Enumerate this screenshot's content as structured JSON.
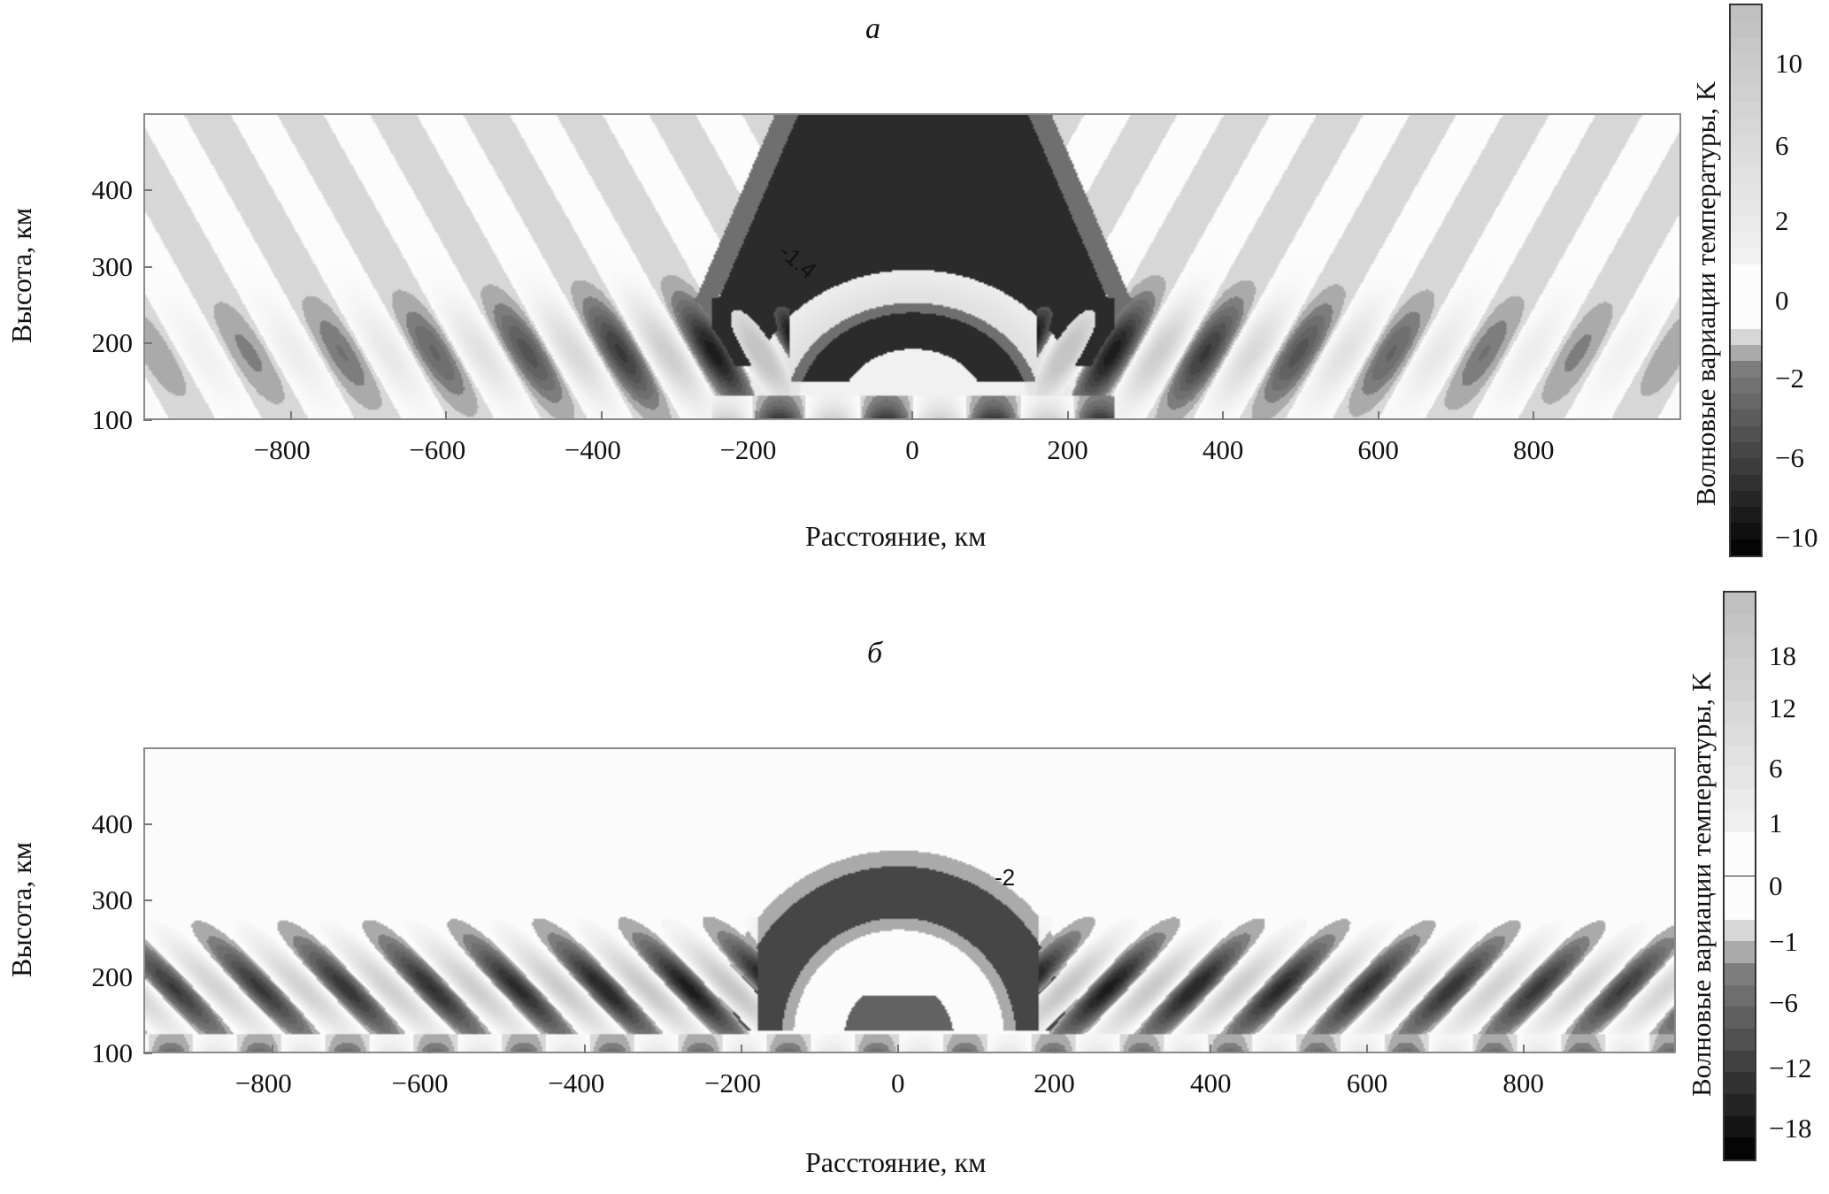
{
  "chart_data": [
    {
      "type": "heatmap",
      "panel_label": "а",
      "xlabel": "Расстояние, км",
      "ylabel": "Высота, км",
      "xlim": [
        -990,
        990
      ],
      "ylim": [
        100,
        500
      ],
      "xticks": [
        "−800",
        "−600",
        "−400",
        "−200",
        "0",
        "200",
        "400",
        "600",
        "800"
      ],
      "xtick_values": [
        -800,
        -600,
        -400,
        -200,
        0,
        200,
        400,
        600,
        800
      ],
      "yticks": [
        "100",
        "200",
        "300",
        "400"
      ],
      "ytick_values": [
        100,
        200,
        300,
        400
      ],
      "colorbar": {
        "label": "Волновые вариации температуры, K",
        "ticks": [
          "10",
          "6",
          "2",
          "0",
          "−2",
          "−6",
          "−10"
        ],
        "tick_values": [
          10,
          6,
          2,
          0,
          -2,
          -6,
          -10
        ],
        "range": [
          -11,
          12
        ]
      },
      "contour_labels": [
        "-1.4"
      ],
      "colormap": "grayscale, dark = negative, light = positive"
    },
    {
      "type": "heatmap",
      "panel_label": "б",
      "xlabel": "Расстояние, км",
      "ylabel": "Высота, км",
      "xlim": [
        -965,
        995
      ],
      "ylim": [
        100,
        500
      ],
      "xticks": [
        "−800",
        "−600",
        "−400",
        "−200",
        "0",
        "200",
        "400",
        "600",
        "800"
      ],
      "xtick_values": [
        -800,
        -600,
        -400,
        -200,
        0,
        200,
        400,
        600,
        800
      ],
      "yticks": [
        "100",
        "200",
        "300",
        "400"
      ],
      "ytick_values": [
        100,
        200,
        300,
        400
      ],
      "colorbar": {
        "label": "Волновые вариации температуры, K",
        "ticks": [
          "18",
          "12",
          "6",
          "1",
          "0",
          "−1",
          "−6",
          "−12",
          "−18"
        ],
        "tick_values": [
          18,
          12,
          6,
          1,
          0,
          -1,
          -6,
          -12,
          -18
        ],
        "range": [
          -21,
          24
        ]
      },
      "contour_labels": [
        "-2"
      ],
      "colormap": "grayscale, dark = negative, light = positive"
    }
  ]
}
